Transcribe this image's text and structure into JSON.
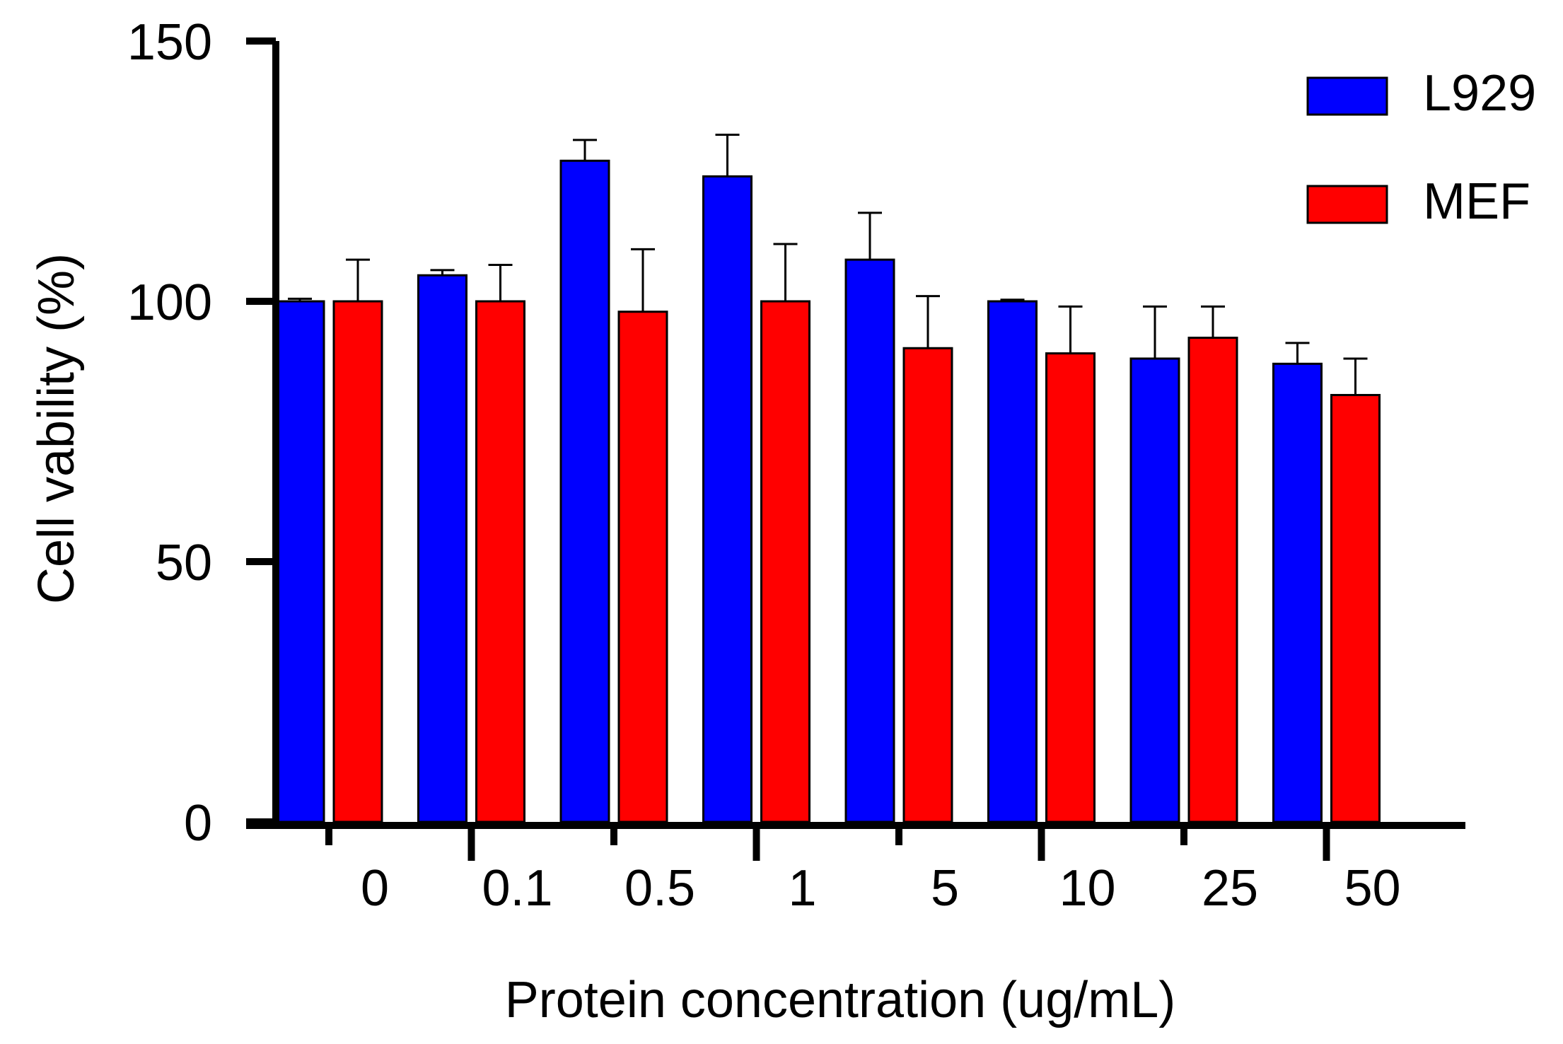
{
  "chart_data": {
    "type": "bar",
    "title": "",
    "xlabel": "Protein concentration (ug/mL)",
    "ylabel": "Cell vability (%)",
    "ylim": [
      0,
      150
    ],
    "yticks": [
      0,
      50,
      100,
      150
    ],
    "grid": false,
    "legend_position": "top-right",
    "categories": [
      "0",
      "0.1",
      "0.5",
      "1",
      "5",
      "10",
      "25",
      "50"
    ],
    "series": [
      {
        "name": "L929",
        "color": "#0000ff",
        "values": [
          100,
          105,
          127,
          124,
          108,
          100,
          89,
          88
        ],
        "errors": [
          0.5,
          1,
          4,
          8,
          9,
          0.3,
          10,
          4
        ]
      },
      {
        "name": "MEF",
        "color": "#ff0000",
        "values": [
          100,
          100,
          98,
          100,
          91,
          90,
          93,
          82
        ],
        "errors": [
          8,
          7,
          12,
          11,
          10,
          9,
          6,
          7
        ]
      }
    ]
  }
}
